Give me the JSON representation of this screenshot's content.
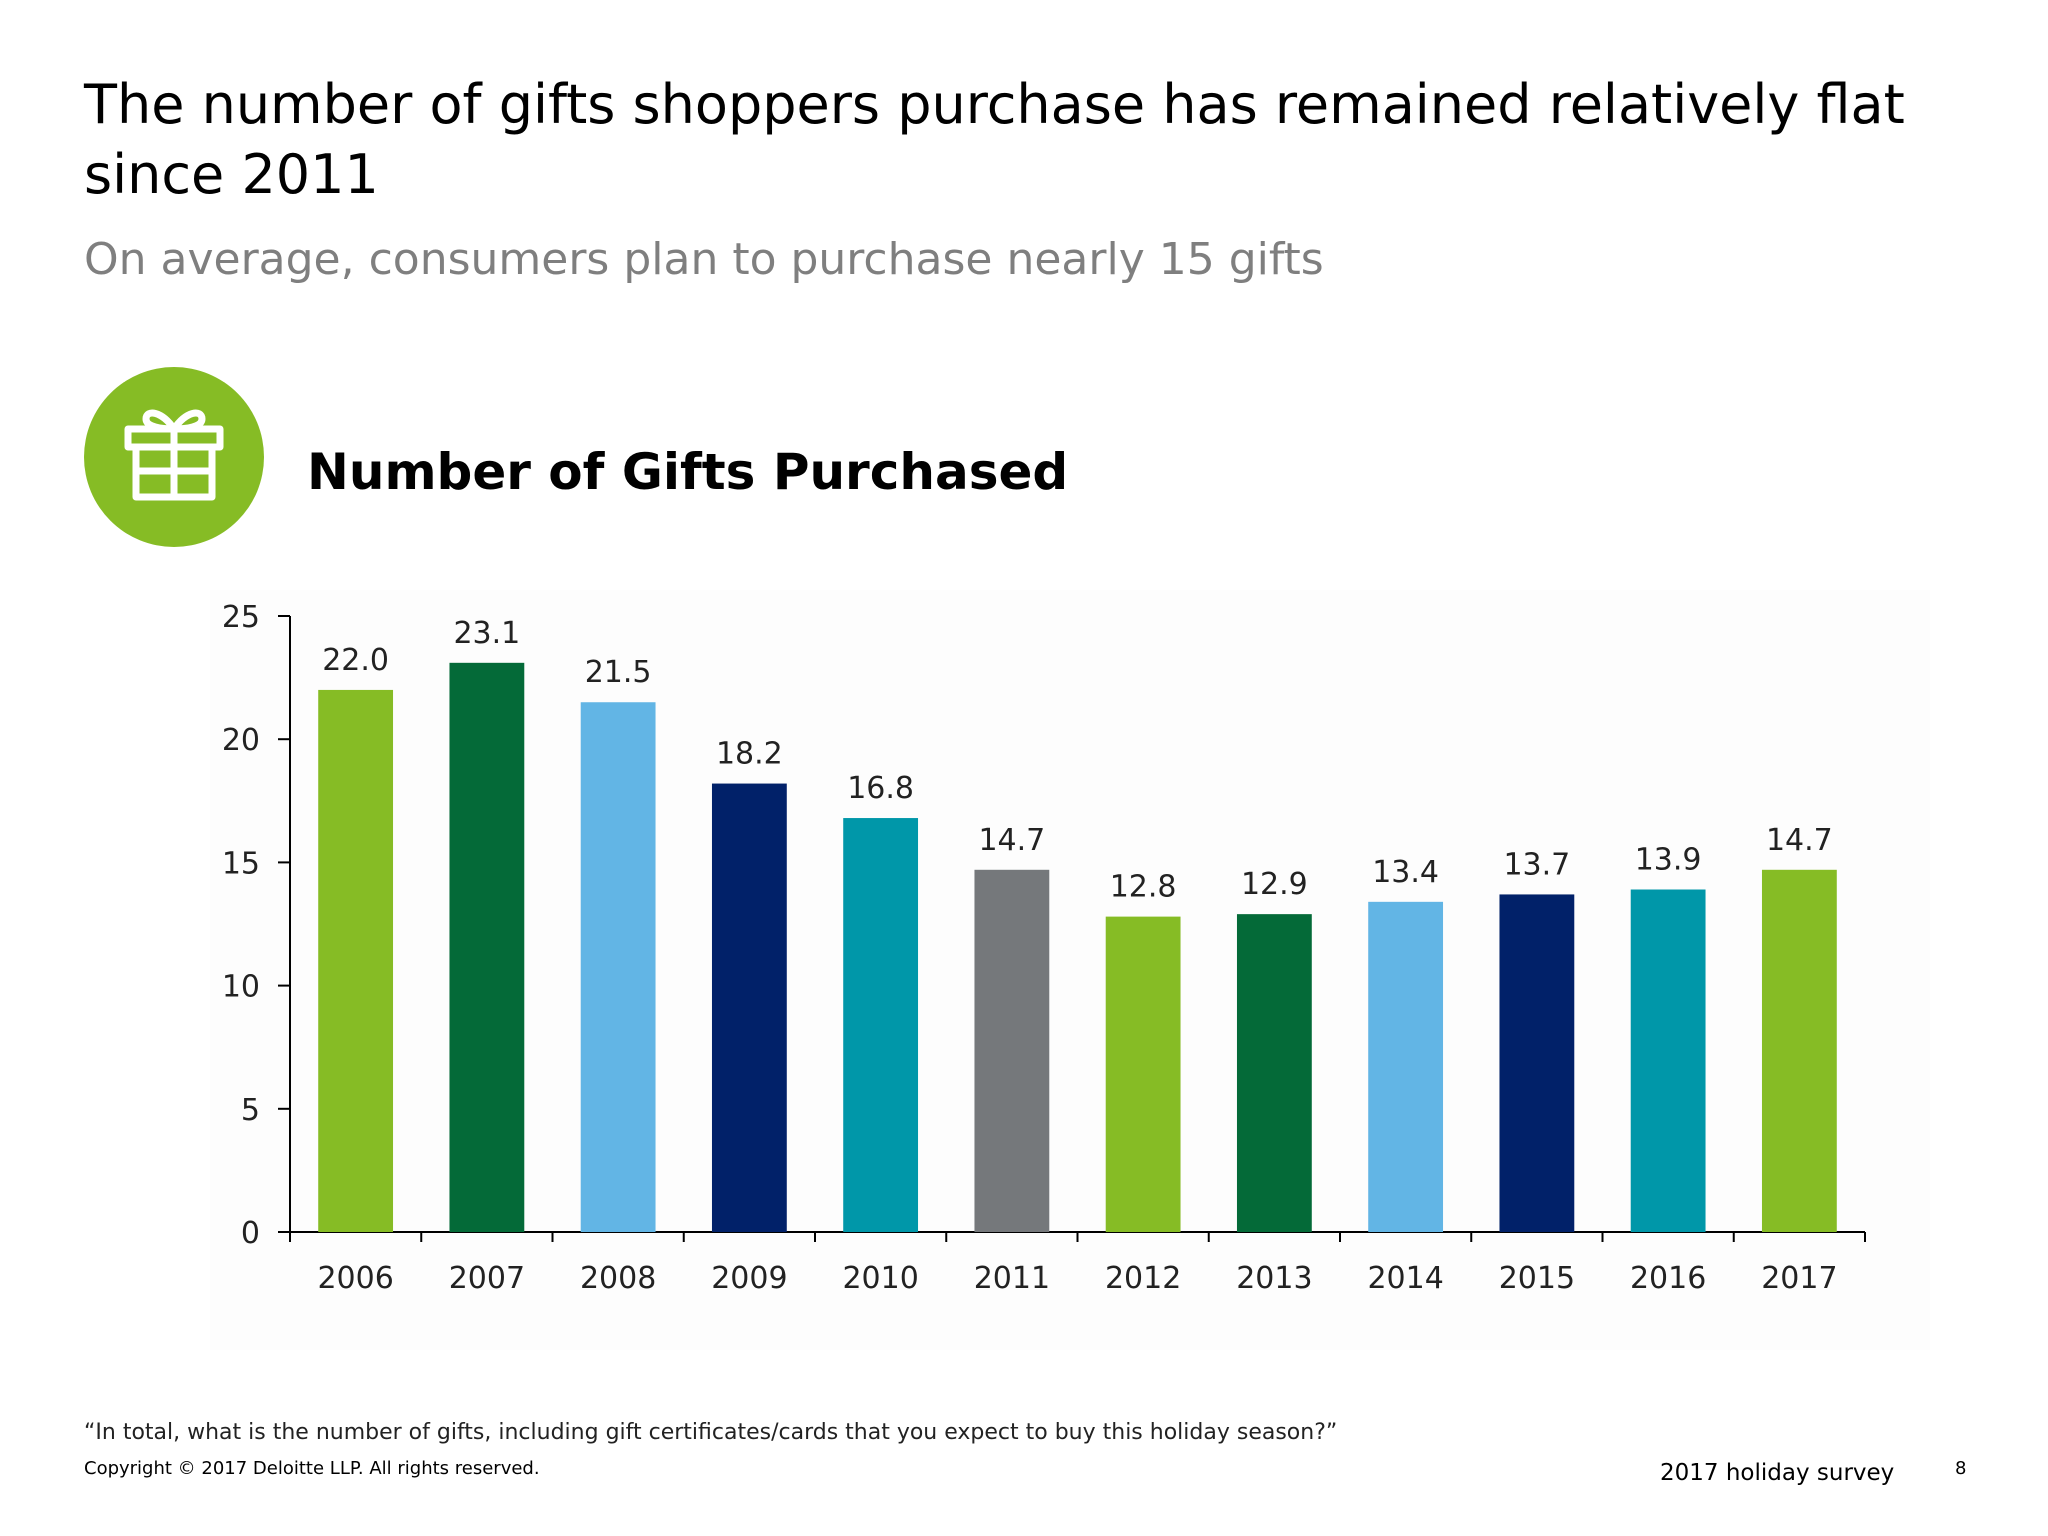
{
  "slide": {
    "headline": "The number of gifts shoppers purchase has remained relatively flat since 2011",
    "subhead": "On average, consumers plan to purchase nearly 15 gifts",
    "badge_icon": "gift-icon",
    "question": "“In total, what is the number of gifts, including gift certificates/cards that you expect to buy this holiday season?”",
    "copyright": "Copyright © 2017 Deloitte LLP. All rights reserved.",
    "survey_label": "2017 holiday survey",
    "page_number": "8"
  },
  "colors": {
    "green": "#86bc25",
    "dark_green": "#046a38",
    "light_blue": "#62b5e5",
    "navy": "#012169",
    "teal": "#0097a9",
    "gray": "#75787b"
  },
  "chart_data": {
    "type": "bar",
    "title": "Number of Gifts Purchased",
    "xlabel": "",
    "ylabel": "",
    "categories": [
      "2006",
      "2007",
      "2008",
      "2009",
      "2010",
      "2011",
      "2012",
      "2013",
      "2014",
      "2015",
      "2016",
      "2017"
    ],
    "values": [
      22.0,
      23.1,
      21.5,
      18.2,
      16.8,
      14.7,
      12.8,
      12.9,
      13.4,
      13.7,
      13.9,
      14.7
    ],
    "value_labels": [
      "22.0",
      "23.1",
      "21.5",
      "18.2",
      "16.8",
      "14.7",
      "12.8",
      "12.9",
      "13.4",
      "13.7",
      "13.9",
      "14.7"
    ],
    "bar_colors": [
      "#86bc25",
      "#046a38",
      "#62b5e5",
      "#012169",
      "#0097a9",
      "#75787b",
      "#86bc25",
      "#046a38",
      "#62b5e5",
      "#012169",
      "#0097a9",
      "#86bc25"
    ],
    "ylim": [
      0,
      25
    ],
    "yticks": [
      0,
      5,
      10,
      15,
      20,
      25
    ],
    "grid": false,
    "legend": "none"
  }
}
